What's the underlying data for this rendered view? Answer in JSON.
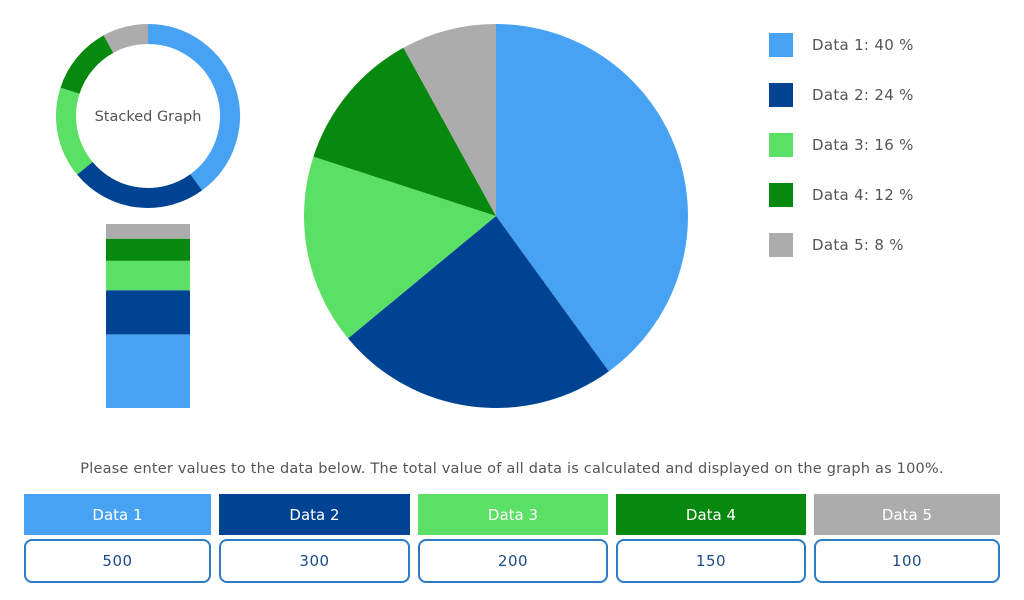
{
  "donut_label": "Stacked Graph",
  "instructions": "Please enter values to the data below. The total value of all data is calculated and displayed on the graph as 100%.",
  "legend": [
    {
      "label": "Data 1: 40 %"
    },
    {
      "label": "Data 2: 24 %"
    },
    {
      "label": "Data 3: 16 %"
    },
    {
      "label": "Data 4: 12 %"
    },
    {
      "label": "Data 5: 8 %"
    }
  ],
  "inputs": [
    {
      "label": "Data 1",
      "value": "500"
    },
    {
      "label": "Data 2",
      "value": "300"
    },
    {
      "label": "Data 3",
      "value": "200"
    },
    {
      "label": "Data 4",
      "value": "150"
    },
    {
      "label": "Data 5",
      "value": "100"
    }
  ],
  "chart_data": {
    "type": "pie",
    "categories": [
      "Data 1",
      "Data 2",
      "Data 3",
      "Data 4",
      "Data 5"
    ],
    "values": [
      500,
      300,
      200,
      150,
      100
    ],
    "percentages": [
      40,
      24,
      16,
      12,
      8
    ],
    "colors": [
      "#48a2f3",
      "#004393",
      "#5ae064",
      "#07880e",
      "#acacac"
    ]
  }
}
